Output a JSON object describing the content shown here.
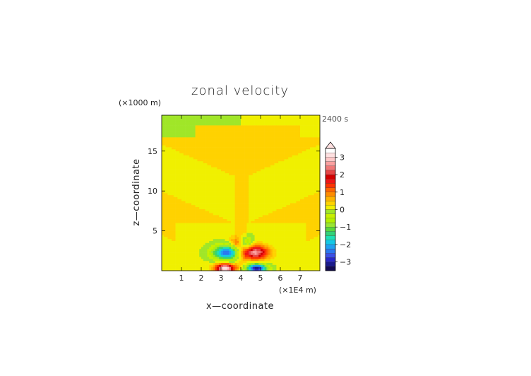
{
  "chart_data": {
    "type": "heatmap",
    "title": "zonal velocity",
    "xlabel": "x—coordinate",
    "ylabel": "z—coordinate",
    "x_unit": "(×1E4 m)",
    "y_unit": "(×1000 m)",
    "time_label": "2400 s",
    "xlim": [
      0,
      8.0
    ],
    "ylim": [
      0,
      19.5
    ],
    "x_ticks": [
      1,
      2,
      3,
      4,
      5,
      6,
      7
    ],
    "y_ticks": [
      5,
      10,
      15
    ],
    "colorbar": {
      "levels": [
        -3.5,
        -3.25,
        -3,
        -2.75,
        -2.5,
        -2.25,
        -2,
        -1.75,
        -1.5,
        -1.25,
        -1,
        -0.75,
        -0.5,
        -0.25,
        0,
        0.25,
        0.5,
        0.75,
        1,
        1.25,
        1.5,
        1.75,
        2,
        2.25,
        2.5,
        2.75,
        3,
        3.25,
        3.5
      ],
      "tick_labels": [
        "3",
        "2",
        "1",
        "0",
        "−1",
        "−2",
        "−3"
      ],
      "tick_values": [
        3,
        2,
        1,
        0,
        -1,
        -2,
        -3
      ],
      "extend": "max"
    },
    "field_description_values": {
      "background_range": [
        -0.25,
        0.5
      ],
      "symmetry_axis_x": 4.0,
      "min_value": -3.5,
      "max_value": 3.5
    }
  }
}
